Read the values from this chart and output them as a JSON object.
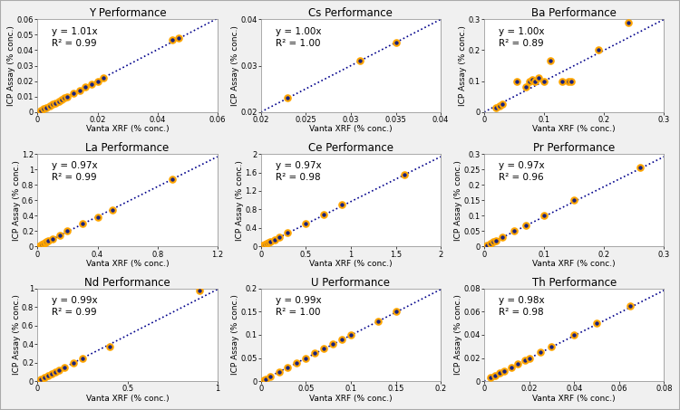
{
  "panels": [
    {
      "title": "Y Performance",
      "equation": "y = 1.01x",
      "r2": "R² = 0.99",
      "slope": 1.01,
      "xlim": [
        0,
        0.06
      ],
      "ylim": [
        0,
        0.06
      ],
      "xticks": [
        0,
        0.02,
        0.04,
        0.06
      ],
      "yticks": [
        0,
        0.01,
        0.02,
        0.03,
        0.04,
        0.05,
        0.06
      ],
      "x": [
        0.001,
        0.002,
        0.003,
        0.004,
        0.005,
        0.006,
        0.007,
        0.008,
        0.009,
        0.01,
        0.012,
        0.014,
        0.016,
        0.018,
        0.02,
        0.022,
        0.045,
        0.047
      ],
      "y": [
        0.001,
        0.002,
        0.003,
        0.004,
        0.005,
        0.006,
        0.007,
        0.008,
        0.009,
        0.01,
        0.012,
        0.014,
        0.016,
        0.018,
        0.02,
        0.022,
        0.047,
        0.048
      ]
    },
    {
      "title": "Cs Performance",
      "equation": "y = 1.00x",
      "r2": "R² = 1.00",
      "slope": 1.0,
      "xlim": [
        0.02,
        0.04
      ],
      "ylim": [
        0.02,
        0.04
      ],
      "xticks": [
        0.02,
        0.025,
        0.03,
        0.035,
        0.04
      ],
      "yticks": [
        0.02,
        0.03,
        0.04
      ],
      "x": [
        0.023,
        0.031,
        0.035
      ],
      "y": [
        0.023,
        0.031,
        0.035
      ]
    },
    {
      "title": "Ba Performance",
      "equation": "y = 1.00x",
      "r2": "R² = 0.89",
      "slope": 1.0,
      "xlim": [
        0,
        0.3
      ],
      "ylim": [
        0,
        0.3
      ],
      "xticks": [
        0,
        0.1,
        0.2,
        0.3
      ],
      "yticks": [
        0,
        0.1,
        0.2,
        0.3
      ],
      "x": [
        0.02,
        0.025,
        0.03,
        0.055,
        0.07,
        0.075,
        0.08,
        0.085,
        0.09,
        0.1,
        0.11,
        0.13,
        0.14,
        0.145,
        0.19,
        0.24
      ],
      "y": [
        0.015,
        0.02,
        0.025,
        0.1,
        0.08,
        0.1,
        0.105,
        0.1,
        0.11,
        0.1,
        0.165,
        0.1,
        0.1,
        0.1,
        0.2,
        0.29
      ]
    },
    {
      "title": "La Performance",
      "equation": "y = 0.97x",
      "r2": "R² = 0.99",
      "slope": 0.97,
      "xlim": [
        0,
        1.2
      ],
      "ylim": [
        0,
        1.2
      ],
      "xticks": [
        0,
        0.4,
        0.8,
        1.2
      ],
      "yticks": [
        0,
        0.2,
        0.4,
        0.6,
        0.8,
        1.0,
        1.2
      ],
      "x": [
        0.01,
        0.02,
        0.03,
        0.04,
        0.05,
        0.06,
        0.07,
        0.1,
        0.15,
        0.2,
        0.3,
        0.4,
        0.5,
        0.9
      ],
      "y": [
        0.01,
        0.02,
        0.03,
        0.04,
        0.05,
        0.06,
        0.07,
        0.1,
        0.15,
        0.2,
        0.3,
        0.38,
        0.47,
        0.87
      ]
    },
    {
      "title": "Ce Performance",
      "equation": "y = 0.97x",
      "r2": "R² = 0.98",
      "slope": 0.97,
      "xlim": [
        0,
        2.0
      ],
      "ylim": [
        0,
        2.0
      ],
      "xticks": [
        0,
        0.5,
        1.0,
        1.5,
        2.0
      ],
      "yticks": [
        0,
        0.4,
        0.8,
        1.2,
        1.6,
        2.0
      ],
      "x": [
        0.02,
        0.04,
        0.06,
        0.08,
        0.1,
        0.15,
        0.2,
        0.3,
        0.5,
        0.7,
        0.9,
        1.6
      ],
      "y": [
        0.02,
        0.04,
        0.06,
        0.08,
        0.1,
        0.15,
        0.2,
        0.3,
        0.5,
        0.7,
        0.9,
        1.55
      ]
    },
    {
      "title": "Pr Performance",
      "equation": "y = 0.97x",
      "r2": "R² = 0.96",
      "slope": 0.97,
      "xlim": [
        0,
        0.3
      ],
      "ylim": [
        0,
        0.3
      ],
      "xticks": [
        0,
        0.1,
        0.2,
        0.3
      ],
      "yticks": [
        0,
        0.05,
        0.1,
        0.15,
        0.2,
        0.25,
        0.3
      ],
      "x": [
        0.005,
        0.01,
        0.015,
        0.02,
        0.03,
        0.05,
        0.07,
        0.1,
        0.15,
        0.26
      ],
      "y": [
        0.005,
        0.01,
        0.015,
        0.02,
        0.03,
        0.05,
        0.07,
        0.1,
        0.15,
        0.255
      ]
    },
    {
      "title": "Nd Performance",
      "equation": "y = 0.99x",
      "r2": "R² = 0.99",
      "slope": 0.99,
      "xlim": [
        0,
        1.0
      ],
      "ylim": [
        0,
        1.0
      ],
      "xticks": [
        0,
        0.5,
        1.0
      ],
      "yticks": [
        0,
        0.2,
        0.4,
        0.6,
        0.8,
        1.0
      ],
      "x": [
        0.02,
        0.04,
        0.06,
        0.08,
        0.1,
        0.12,
        0.15,
        0.2,
        0.25,
        0.4,
        0.9
      ],
      "y": [
        0.02,
        0.04,
        0.06,
        0.08,
        0.1,
        0.12,
        0.15,
        0.2,
        0.25,
        0.37,
        0.98
      ]
    },
    {
      "title": "U Performance",
      "equation": "y = 0.99x",
      "r2": "R² = 1.00",
      "slope": 0.99,
      "xlim": [
        0,
        0.2
      ],
      "ylim": [
        0,
        0.2
      ],
      "xticks": [
        0,
        0.05,
        0.1,
        0.15,
        0.2
      ],
      "yticks": [
        0,
        0.05,
        0.1,
        0.15,
        0.2
      ],
      "x": [
        0.003,
        0.005,
        0.01,
        0.02,
        0.03,
        0.04,
        0.05,
        0.06,
        0.07,
        0.08,
        0.09,
        0.1,
        0.13,
        0.15
      ],
      "y": [
        0.003,
        0.005,
        0.01,
        0.02,
        0.03,
        0.04,
        0.05,
        0.06,
        0.07,
        0.08,
        0.09,
        0.1,
        0.13,
        0.15
      ]
    },
    {
      "title": "Th Performance",
      "equation": "y = 0.98x",
      "r2": "R² = 0.98",
      "slope": 0.98,
      "xlim": [
        0,
        0.08
      ],
      "ylim": [
        0,
        0.08
      ],
      "xticks": [
        0,
        0.02,
        0.04,
        0.06,
        0.08
      ],
      "yticks": [
        0,
        0.02,
        0.04,
        0.06,
        0.08
      ],
      "x": [
        0.003,
        0.005,
        0.007,
        0.009,
        0.012,
        0.015,
        0.018,
        0.02,
        0.025,
        0.03,
        0.04,
        0.05,
        0.065
      ],
      "y": [
        0.003,
        0.005,
        0.007,
        0.009,
        0.012,
        0.015,
        0.018,
        0.02,
        0.025,
        0.03,
        0.04,
        0.05,
        0.065
      ]
    }
  ],
  "dot_face_color": "#1a237e",
  "dot_edge_color": "#FFA500",
  "line_color": "#00008B",
  "xlabel": "Vanta XRF (% conc.)",
  "ylabel": "ICP Assay (% conc.)",
  "bg_color": "#ffffff",
  "outer_bg": "#f0f0f0",
  "title_fontsize": 8.5,
  "label_fontsize": 6.5,
  "tick_fontsize": 6.0,
  "annot_fontsize": 7.5
}
